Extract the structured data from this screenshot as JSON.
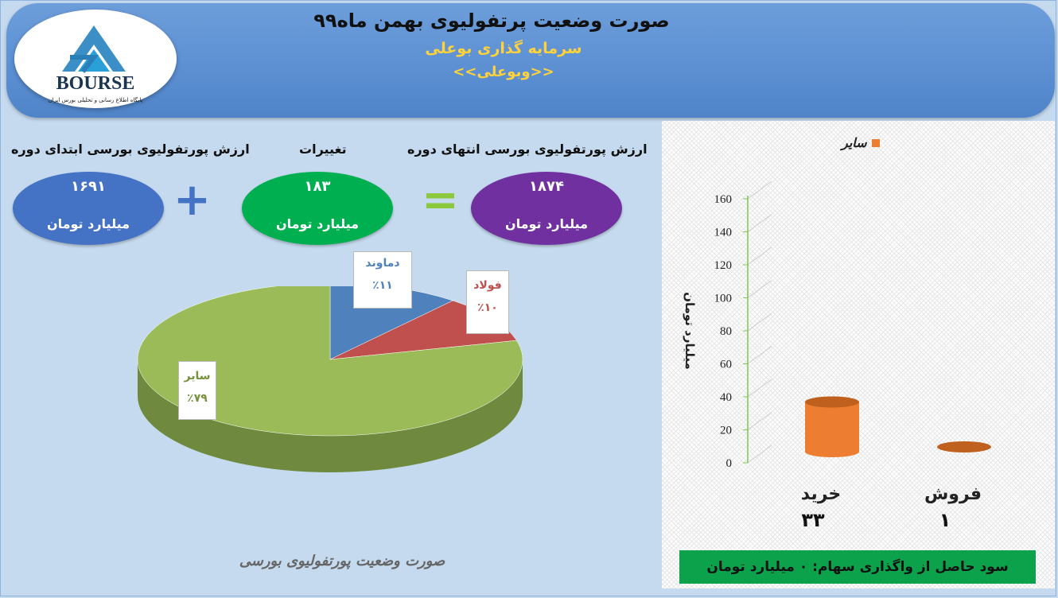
{
  "header": {
    "title": "صورت وضعیت پرتفولیوی بهمن ماه۹۹",
    "subtitle": "سرمایه گذاری بوعلی",
    "symbol": "<<وبوعلی>>"
  },
  "logo": {
    "text": "BOURSE",
    "tagline": "پایگاه اطلاع رسانی و تحلیلی بورس ایران"
  },
  "summary": {
    "start_label": "ارزش پورتفولیوی بورسی ابتدای دوره",
    "start_value": "۱۶۹۱",
    "start_unit": "میلیارد تومان",
    "change_label": "تغییرات",
    "change_value": "۱۸۳",
    "change_unit": "میلیارد تومان",
    "end_label": "ارزش پورتفولیوی بورسی انتهای دوره",
    "end_value": "۱۸۷۴",
    "end_unit": "میلیارد تومان",
    "plus": "+",
    "equals": "="
  },
  "colors": {
    "start": "#4472c4",
    "change": "#00b050",
    "end": "#7030a0",
    "pie_blue": "#4f81bd",
    "pie_red": "#c0504d",
    "pie_green": "#9bbb59",
    "bar": "#ed7d31"
  },
  "chart_data": [
    {
      "type": "pie",
      "title": "صورت وضعیت پورتفولیوی بورسی",
      "slices": [
        {
          "name": "دماوند",
          "label": "٪۱۱",
          "value": 11
        },
        {
          "name": "فولاد",
          "label": "٪۱۰",
          "value": 10
        },
        {
          "name": "سایر",
          "label": "٪۷۹",
          "value": 79
        }
      ]
    },
    {
      "type": "bar",
      "legend": "سایر",
      "legend_position": "top",
      "categories": [
        "خرید",
        "فروش"
      ],
      "category_value_labels": [
        "۳۳",
        "۱"
      ],
      "values": [
        33,
        1
      ],
      "ylabel": "میلیارد تومان",
      "ylim": [
        0,
        160
      ],
      "yticks": [
        "0",
        "20",
        "40",
        "60",
        "80",
        "100",
        "120",
        "140",
        "160"
      ]
    }
  ],
  "profit": {
    "text": "سود حاصل از واگذاری سهام: ۰ میلیارد تومان"
  }
}
